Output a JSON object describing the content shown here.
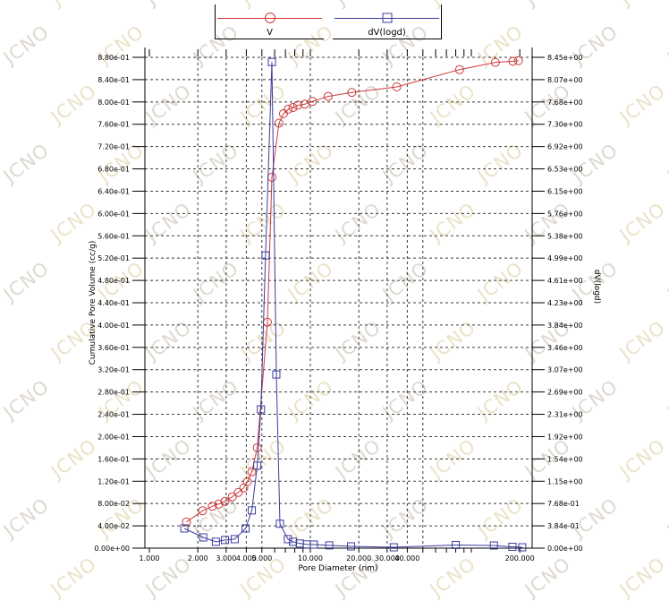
{
  "watermark": {
    "text": "JCNO",
    "colors": [
      "#ded9d0",
      "#ece2c9"
    ]
  },
  "legend": {
    "entries": [
      {
        "label": "V",
        "color": "#cc3a3a",
        "marker": "circle"
      },
      {
        "label": "dV(logd)",
        "color": "#3c3c9e",
        "marker": "square"
      }
    ]
  },
  "axes": {
    "x": {
      "title": "Pore Diameter (nm)",
      "scale": "log",
      "min": 1000,
      "max": 241000,
      "tick_labels": [
        {
          "d": 1000,
          "label": "1.000"
        },
        {
          "d": 2000,
          "label": "2.000"
        },
        {
          "d": 3000,
          "label": "3.000"
        },
        {
          "d": 4000,
          "label": "4.000"
        },
        {
          "d": 5000,
          "label": "5.000"
        },
        {
          "d": 10000,
          "label": "10.000"
        },
        {
          "d": 20000,
          "label": "20.000"
        },
        {
          "d": 30000,
          "label": "30.000"
        },
        {
          "d": 40000,
          "label": "40.000"
        },
        {
          "d": 200000,
          "label": "200.000"
        }
      ],
      "gridlines": [
        2000,
        3000,
        4000,
        5000,
        10000,
        20000,
        30000,
        40000,
        50000
      ]
    },
    "y_left": {
      "title": "Cumulative Pore Volume (cc/g)",
      "min": 0,
      "max": 0.88,
      "step": 0.04,
      "tick_labels": [
        "0.00e+00",
        "4.00e-02",
        "8.00e-02",
        "1.20e-01",
        "1.60e-01",
        "2.00e-01",
        "2.40e-01",
        "2.80e-01",
        "3.20e-01",
        "3.60e-01",
        "4.00e-01",
        "4.40e-01",
        "4.80e-01",
        "5.20e-01",
        "5.60e-01",
        "6.00e-01",
        "6.40e-01",
        "6.80e-01",
        "7.20e-01",
        "7.60e-01",
        "8.00e-01",
        "8.40e-01",
        "8.80e-01"
      ]
    },
    "y_right": {
      "title": "dV(logd)",
      "min": 0,
      "max": 8.45,
      "tick_labels": [
        "0.00e+00",
        "3.84e-01",
        "7.68e-01",
        "1.15e+00",
        "1.54e+00",
        "1.92e+00",
        "2.31e+00",
        "2.69e+00",
        "3.07e+00",
        "3.46e+00",
        "3.84e+00",
        "4.23e+00",
        "4.61e+00",
        "4.99e+00",
        "5.38e+00",
        "5.76e+00",
        "6.15e+00",
        "6.53e+00",
        "6.92e+00",
        "7.30e+00",
        "7.68e+00",
        "8.07e+00",
        "8.45e+00"
      ]
    }
  },
  "chart_data": {
    "type": "line",
    "title": "",
    "xlabel": "Pore Diameter (nm)",
    "ylabel_left": "Cumulative Pore Volume (cc/g)",
    "ylabel_right": "dV(logd)",
    "x_scale": "log",
    "x_range_nm": [
      1000,
      241000
    ],
    "y_left_range": [
      0,
      0.88
    ],
    "y_right_range": [
      0,
      8.45
    ],
    "grid": "dashed",
    "legend_position": "top-center",
    "series": [
      {
        "name": "V",
        "axis": "left",
        "color": "#cc3a3a",
        "marker": "circle",
        "points": [
          [
            1700,
            0.047
          ],
          [
            2140,
            0.067
          ],
          [
            2460,
            0.075
          ],
          [
            2690,
            0.079
          ],
          [
            2950,
            0.084
          ],
          [
            3270,
            0.092
          ],
          [
            3570,
            0.1
          ],
          [
            3860,
            0.108
          ],
          [
            4060,
            0.119
          ],
          [
            4330,
            0.137
          ],
          [
            4680,
            0.18
          ],
          [
            5410,
            0.405
          ],
          [
            5770,
            0.665
          ],
          [
            6380,
            0.762
          ],
          [
            6810,
            0.779
          ],
          [
            7290,
            0.787
          ],
          [
            7800,
            0.79
          ],
          [
            8350,
            0.794
          ],
          [
            9250,
            0.796
          ],
          [
            10300,
            0.801
          ],
          [
            12900,
            0.81
          ],
          [
            18100,
            0.817
          ],
          [
            34400,
            0.827
          ],
          [
            84500,
            0.858
          ],
          [
            141000,
            0.871
          ],
          [
            181000,
            0.873
          ],
          [
            196000,
            0.874
          ]
        ]
      },
      {
        "name": "dV(logd)",
        "axis": "right",
        "color": "#3c3c9e",
        "marker": "square",
        "points": [
          [
            1650,
            0.34
          ],
          [
            2160,
            0.185
          ],
          [
            2590,
            0.11
          ],
          [
            2950,
            0.14
          ],
          [
            3390,
            0.155
          ],
          [
            3960,
            0.34
          ],
          [
            4330,
            0.65
          ],
          [
            4680,
            1.42
          ],
          [
            4930,
            2.39
          ],
          [
            5270,
            5.04
          ],
          [
            5770,
            8.37
          ],
          [
            6150,
            2.99
          ],
          [
            6470,
            0.42
          ],
          [
            7250,
            0.155
          ],
          [
            7800,
            0.11
          ],
          [
            8600,
            0.08
          ],
          [
            9500,
            0.065
          ],
          [
            10500,
            0.062
          ],
          [
            13100,
            0.048
          ],
          [
            17900,
            0.031
          ],
          [
            33000,
            0.015
          ],
          [
            80000,
            0.054
          ],
          [
            138000,
            0.046
          ],
          [
            180000,
            0.023
          ],
          [
            207000,
            0.015
          ]
        ]
      }
    ]
  }
}
